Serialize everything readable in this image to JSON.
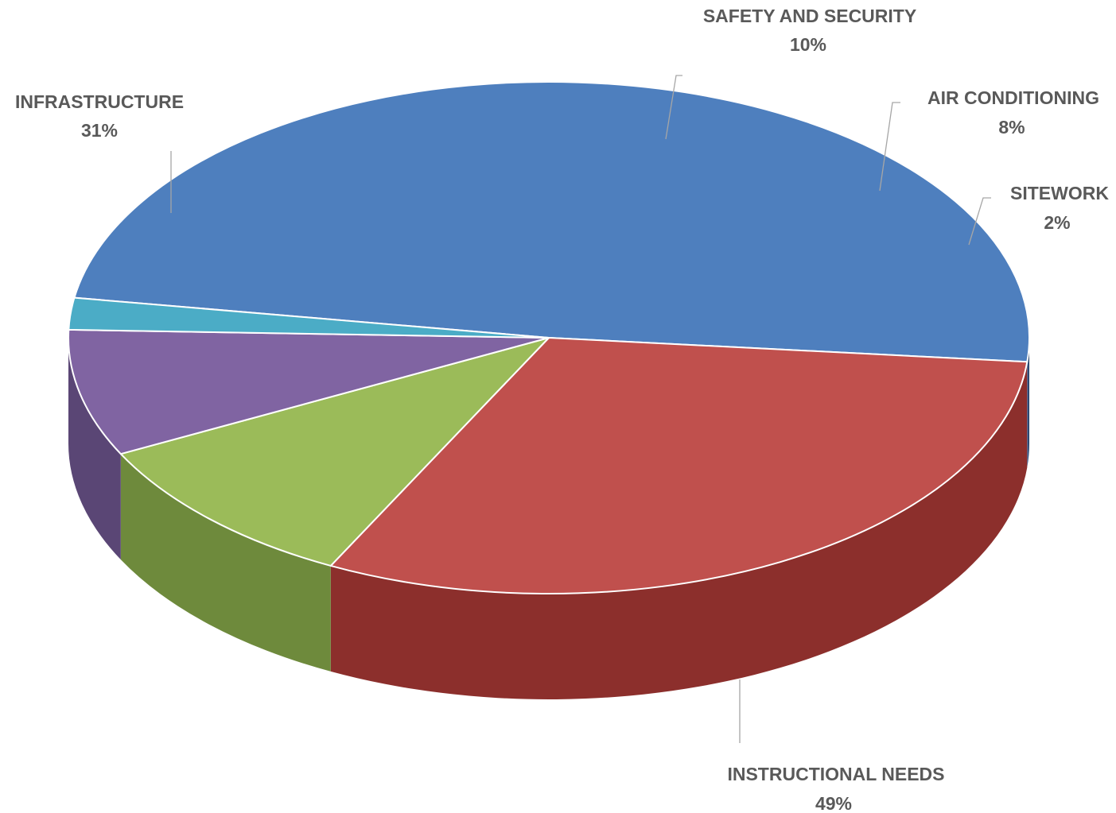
{
  "chart_data": {
    "type": "pie",
    "three_d": true,
    "legend": "none",
    "slices": [
      {
        "category": "INSTRUCTIONAL NEEDS",
        "percent_label": "49%",
        "value": 49,
        "color": "#4e7fbe",
        "side_color": "#2f4f78"
      },
      {
        "category": "INFRASTRUCTURE",
        "percent_label": "31%",
        "value": 31,
        "color": "#c0504d",
        "side_color": "#8c2f2c"
      },
      {
        "category": "SAFETY AND SECURITY",
        "percent_label": "10%",
        "value": 10,
        "color": "#9bbb59",
        "side_color": "#6e8a3c"
      },
      {
        "category": "AIR CONDITIONING",
        "percent_label": "8%",
        "value": 8,
        "color": "#8064a2",
        "side_color": "#5a4675"
      },
      {
        "category": "SITEWORK",
        "percent_label": "2%",
        "value": 2,
        "color": "#4bacc6",
        "side_color": "#2f7f95"
      }
    ]
  }
}
